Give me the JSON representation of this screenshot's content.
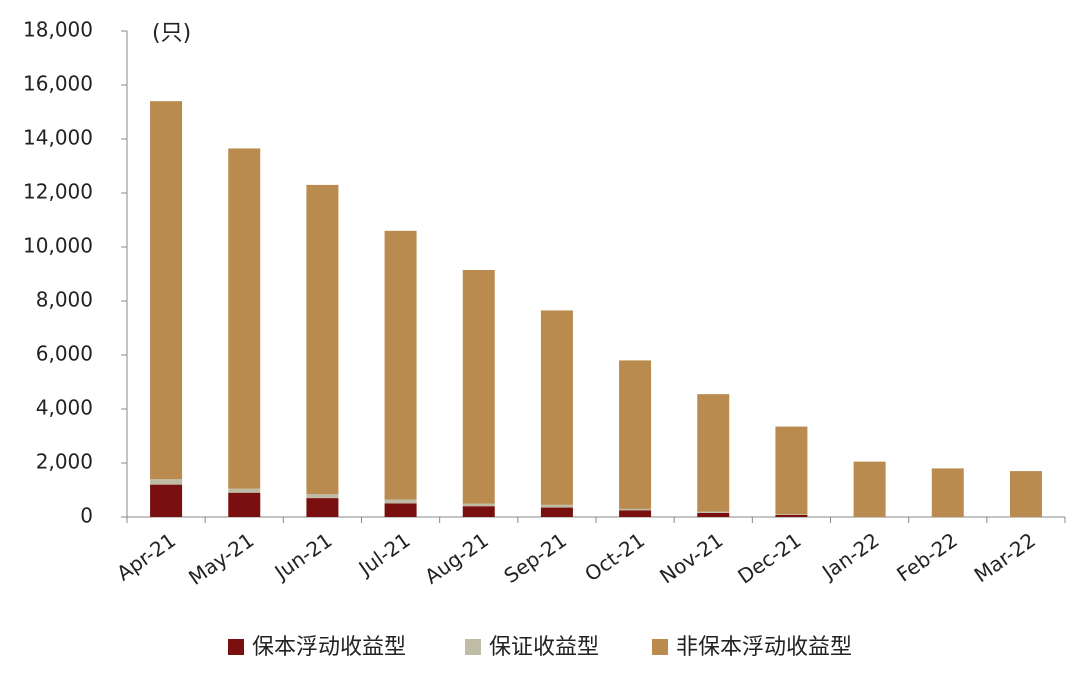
{
  "chart_data": {
    "type": "bar",
    "stacked": true,
    "annotation": "(只)",
    "categories": [
      "Apr-21",
      "May-21",
      "Jun-21",
      "Jul-21",
      "Aug-21",
      "Sep-21",
      "Oct-21",
      "Nov-21",
      "Dec-21",
      "Jan-22",
      "Feb-22",
      "Mar-22"
    ],
    "series": [
      {
        "name": "保本浮动收益型",
        "color": "#7a0f0f",
        "values": [
          1200,
          900,
          700,
          500,
          400,
          350,
          250,
          150,
          80,
          0,
          0,
          0
        ]
      },
      {
        "name": "保证收益型",
        "color": "#bfbca6",
        "values": [
          200,
          150,
          150,
          150,
          100,
          100,
          50,
          50,
          20,
          0,
          0,
          0
        ]
      },
      {
        "name": "非保本浮动收益型",
        "color": "#b98b4e",
        "values": [
          14000,
          12600,
          11450,
          9950,
          8650,
          7200,
          5500,
          4350,
          3250,
          2050,
          1800,
          1700
        ]
      }
    ],
    "ylim": [
      0,
      18000
    ],
    "yticks": [
      0,
      {
        "value": 2000,
        "label": "2,000"
      },
      {
        "value": 4000,
        "label": "4,000"
      },
      {
        "value": 6000,
        "label": "6,000"
      },
      {
        "value": 8000,
        "label": "8,000"
      },
      {
        "value": 10000,
        "label": "10,000"
      },
      {
        "value": 12000,
        "label": "12,000"
      },
      {
        "value": 14000,
        "label": "14,000"
      },
      {
        "value": 16000,
        "label": "16,000"
      },
      {
        "value": 18000,
        "label": "18,000"
      }
    ],
    "grid": false,
    "legend": "bottom"
  }
}
